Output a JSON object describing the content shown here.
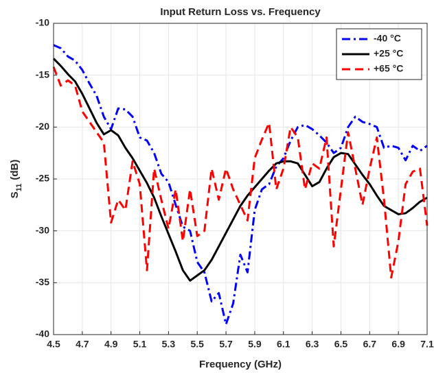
{
  "chart_data": {
    "type": "line",
    "title": "Input Return Loss vs. Frequency",
    "xlabel": "Frequency (GHz)",
    "ylabel": [
      "S",
      "11",
      "(dB)"
    ],
    "x": [
      4.5,
      4.55,
      4.6,
      4.65,
      4.7,
      4.75,
      4.8,
      4.85,
      4.9,
      4.95,
      5.0,
      5.05,
      5.1,
      5.15,
      5.2,
      5.25,
      5.3,
      5.35,
      5.4,
      5.45,
      5.5,
      5.55,
      5.6,
      5.65,
      5.7,
      5.75,
      5.8,
      5.85,
      5.9,
      5.95,
      6.0,
      6.05,
      6.1,
      6.15,
      6.2,
      6.25,
      6.3,
      6.35,
      6.4,
      6.45,
      6.5,
      6.55,
      6.6,
      6.65,
      6.7,
      6.75,
      6.8,
      6.85,
      6.9,
      6.95,
      7.0,
      7.05,
      7.1
    ],
    "series": [
      {
        "name": "-40 °C",
        "color": "#0000ff",
        "style": "dashdot",
        "values": [
          -12.1,
          -12.4,
          -13.2,
          -13.6,
          -14.5,
          -15.8,
          -17,
          -19,
          -20.2,
          -18.2,
          -18.3,
          -19,
          -21,
          -21.3,
          -22.5,
          -24.5,
          -25.3,
          -27.5,
          -29.6,
          -30,
          -33,
          -34,
          -36.8,
          -36,
          -39,
          -37,
          -32.3,
          -34,
          -28,
          -26,
          -25.5,
          -23.8,
          -23,
          -21.3,
          -20,
          -19.8,
          -20.2,
          -20.8,
          -21.5,
          -22.5,
          -22,
          -20,
          -19,
          -19.5,
          -19.7,
          -20,
          -22,
          -21.8,
          -22,
          -23.2,
          -21.8,
          -22.3,
          -21.8
        ]
      },
      {
        "name": "+25 °C",
        "color": "#000000",
        "style": "solid",
        "values": [
          -13.4,
          -14.1,
          -14.9,
          -15.6,
          -16.8,
          -18.2,
          -19.6,
          -20.7,
          -20.3,
          -20.8,
          -22,
          -23,
          -24.2,
          -25.4,
          -26.8,
          -28.6,
          -30.3,
          -32,
          -33.8,
          -34.8,
          -34.3,
          -33.8,
          -32.8,
          -31.5,
          -30.2,
          -28.9,
          -27.6,
          -26.6,
          -25.8,
          -25,
          -24.2,
          -23.5,
          -23.3,
          -23.3,
          -23.5,
          -24.6,
          -25.7,
          -25.3,
          -24,
          -22.9,
          -22.5,
          -22.6,
          -23.6,
          -24.6,
          -25.5,
          -26.6,
          -27.6,
          -28,
          -28.4,
          -28.3,
          -27.8,
          -27.2,
          -26.8
        ]
      },
      {
        "name": "+65 °C",
        "color": "#ff0000",
        "style": "dashed",
        "values": [
          -14.2,
          -16,
          -15.5,
          -16,
          -18.5,
          -19.5,
          -20.5,
          -21.5,
          -29.2,
          -27,
          -28,
          -23.3,
          -25.5,
          -33.8,
          -24,
          -27,
          -29.8,
          -26,
          -31,
          -26,
          -30.5,
          -30,
          -24,
          -27,
          -24,
          -26,
          -27.5,
          -29,
          -23,
          -21.2,
          -19.6,
          -26,
          -24,
          -20,
          -21,
          -26,
          -23.5,
          -24,
          -21,
          -31.5,
          -26,
          -20.5,
          -24,
          -27.5,
          -24,
          -21,
          -27,
          -34.5,
          -31,
          -25.5,
          -24.3,
          -24,
          -29.5
        ]
      }
    ],
    "xlim": [
      4.5,
      7.1
    ],
    "xticks": [
      4.5,
      4.7,
      4.9,
      5.1,
      5.3,
      5.5,
      5.7,
      5.9,
      6.1,
      6.3,
      6.5,
      6.7,
      6.9,
      7.1
    ],
    "ylim": [
      -40,
      -10
    ],
    "yticks": [
      -40,
      -35,
      -30,
      -25,
      -20,
      -15,
      -10
    ],
    "grid": true,
    "legend": "northeast"
  }
}
